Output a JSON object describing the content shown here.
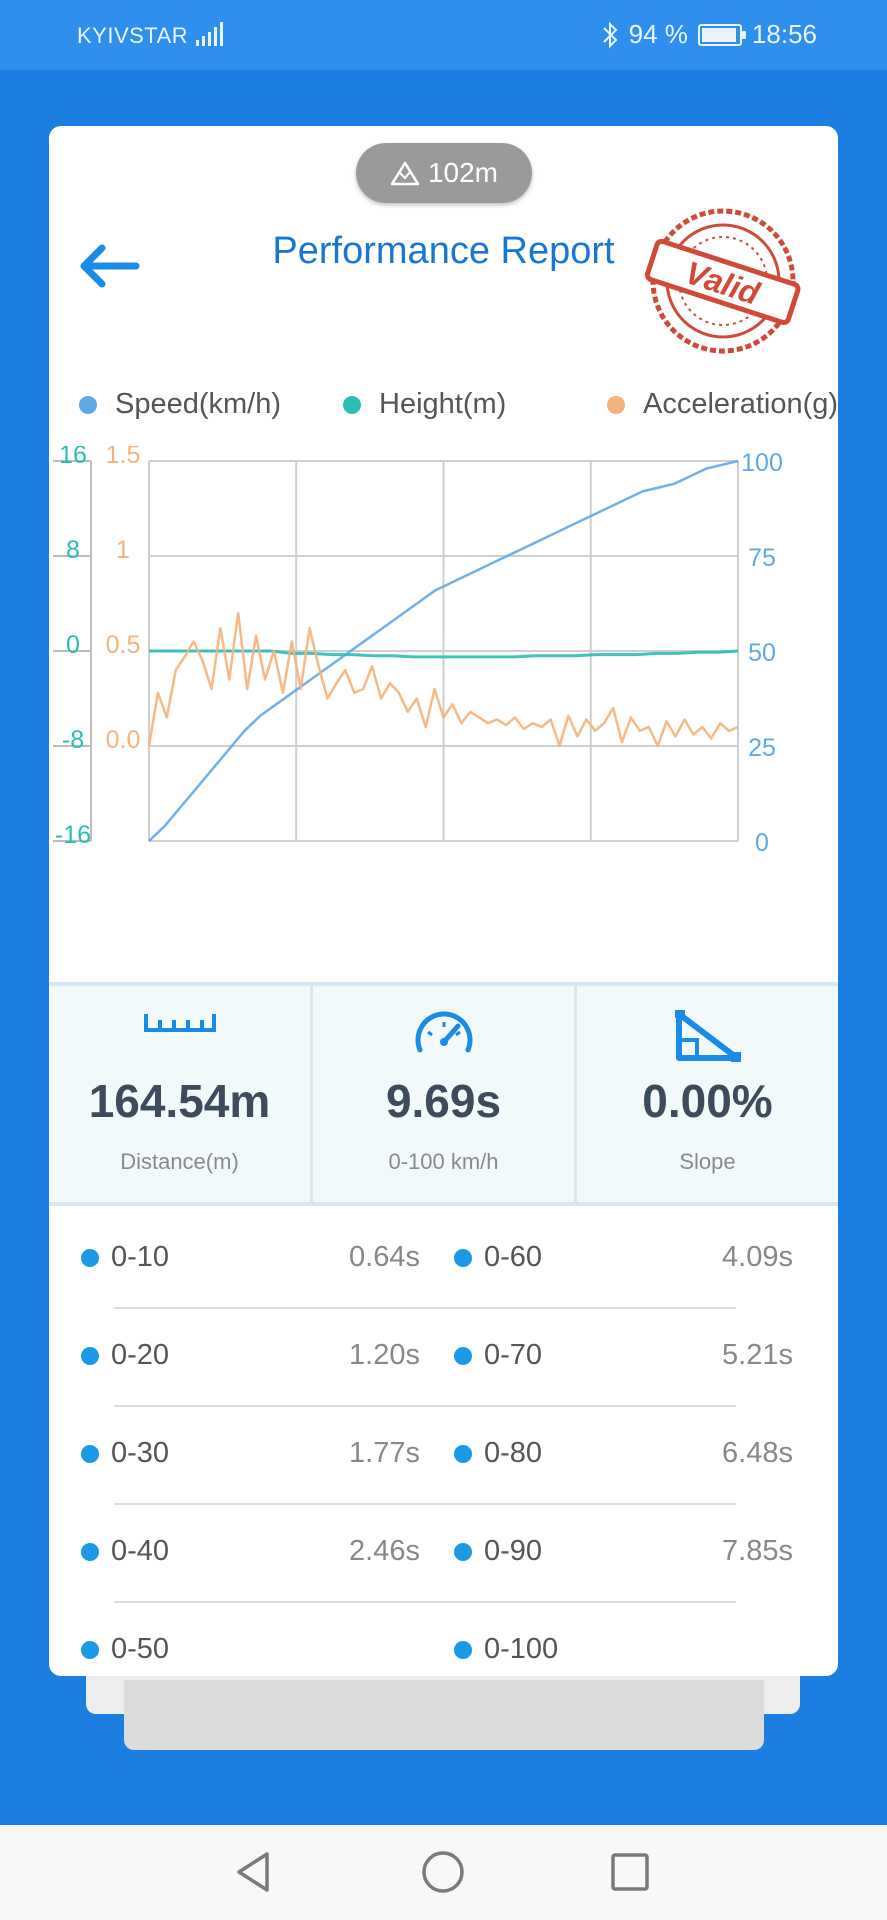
{
  "status_bar": {
    "carrier": "KYIVSTAR",
    "battery_text": "94 %",
    "battery_level": 0.94,
    "time": "18:56"
  },
  "header": {
    "altitude": "102m",
    "title": "Performance Report",
    "stamp_text": "Valid"
  },
  "legend": [
    {
      "label": "Speed(km/h)",
      "color": "#5fa9e6"
    },
    {
      "label": "Height(m)",
      "color": "#2bbcb6"
    },
    {
      "label": "Acceleration(g)",
      "color": "#f5b27a"
    }
  ],
  "chart_data": {
    "type": "line",
    "axes": {
      "height": {
        "ticks": [
          "16",
          "8",
          "0",
          "-8",
          "-16"
        ],
        "range": [
          -16,
          16
        ],
        "color": "#2bbcb6"
      },
      "acceleration": {
        "ticks": [
          "1.5",
          "1",
          "0.5",
          "0.0"
        ],
        "range": [
          0,
          1.5
        ],
        "color": "#f5b27a"
      },
      "speed": {
        "ticks": [
          "100",
          "75",
          "50",
          "25",
          "0"
        ],
        "range": [
          0,
          100
        ],
        "color": "#5fa9e6"
      }
    },
    "grid": true,
    "series": [
      {
        "name": "Speed(km/h)",
        "axis": "speed",
        "values": [
          0,
          4,
          9,
          14,
          19,
          24,
          29,
          33,
          36,
          39,
          42,
          45,
          48,
          51,
          54,
          57,
          60,
          63,
          66,
          68,
          70,
          72,
          74,
          76,
          78,
          80,
          82,
          84,
          86,
          88,
          90,
          92,
          93,
          94,
          96,
          98,
          99,
          100
        ]
      },
      {
        "name": "Height(m)",
        "axis": "height",
        "values": [
          0,
          0,
          0,
          0,
          0,
          0,
          0,
          -0.2,
          -0.2,
          -0.3,
          -0.3,
          -0.4,
          -0.4,
          -0.5,
          -0.5,
          -0.5,
          -0.5,
          -0.5,
          -0.5,
          -0.4,
          -0.4,
          -0.4,
          -0.3,
          -0.3,
          -0.3,
          -0.2,
          -0.2,
          -0.1,
          -0.1,
          0
        ]
      },
      {
        "name": "Acceleration(g)",
        "axis": "acceleration",
        "values": [
          0.0,
          0.28,
          0.15,
          0.4,
          0.47,
          0.55,
          0.45,
          0.3,
          0.62,
          0.35,
          0.7,
          0.3,
          0.58,
          0.35,
          0.5,
          0.28,
          0.55,
          0.3,
          0.62,
          0.42,
          0.25,
          0.33,
          0.4,
          0.28,
          0.3,
          0.42,
          0.25,
          0.33,
          0.28,
          0.18,
          0.25,
          0.1,
          0.3,
          0.15,
          0.22,
          0.12,
          0.18,
          0.15,
          0.12,
          0.14,
          0.11,
          0.15,
          0.09,
          0.12,
          0.1,
          0.14,
          0.0,
          0.16,
          0.05,
          0.14,
          0.08,
          0.12,
          0.2,
          0.02,
          0.15,
          0.08,
          0.1,
          0.0,
          0.13,
          0.05,
          0.14,
          0.06,
          0.1,
          0.04,
          0.12,
          0.08,
          0.1
        ]
      }
    ]
  },
  "stats": [
    {
      "icon": "ruler-icon",
      "value": "164.54m",
      "label": "Distance(m)"
    },
    {
      "icon": "speedometer-icon",
      "value": "9.69s",
      "label": "0-100 km/h"
    },
    {
      "icon": "slope-icon",
      "value": "0.00%",
      "label": "Slope"
    }
  ],
  "intervals": [
    {
      "left_label": "0-10",
      "left_value": "0.64s",
      "right_label": "0-60",
      "right_value": "4.09s"
    },
    {
      "left_label": "0-20",
      "left_value": "1.20s",
      "right_label": "0-70",
      "right_value": "5.21s"
    },
    {
      "left_label": "0-30",
      "left_value": "1.77s",
      "right_label": "0-80",
      "right_value": "6.48s"
    },
    {
      "left_label": "0-40",
      "left_value": "2.46s",
      "right_label": "0-90",
      "right_value": "7.85s"
    },
    {
      "left_label": "0-50",
      "left_value": "",
      "right_label": "0-100",
      "right_value": ""
    }
  ],
  "nav": {
    "back": "back-triangle-icon",
    "home": "home-circle-icon",
    "recent": "recent-square-icon"
  }
}
